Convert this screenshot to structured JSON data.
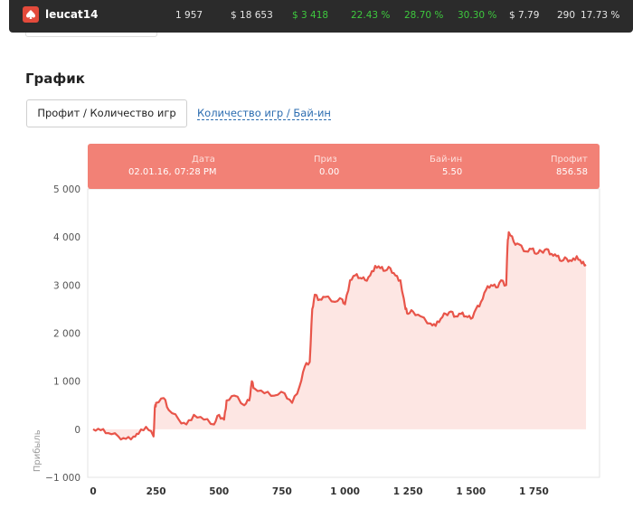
{
  "topbar": {
    "username": "leucat14",
    "stats": [
      {
        "value": "1 957",
        "color": "#e6e6e6"
      },
      {
        "value": "$ 18 653",
        "color": "#e6e6e6"
      },
      {
        "value": "$ 3 418",
        "color": "#3ec93e"
      },
      {
        "value": "22.43 %",
        "color": "#3ec93e"
      },
      {
        "value": "28.70 %",
        "color": "#3ec93e"
      },
      {
        "value": "30.30 %",
        "color": "#3ec93e"
      },
      {
        "value": "$ 7.79",
        "color": "#e6e6e6"
      },
      {
        "value": "290",
        "color": "#e6e6e6"
      },
      {
        "value": "17.73 %",
        "color": "#e6e6e6"
      }
    ]
  },
  "section": {
    "title": "График"
  },
  "tabs": {
    "active": "Профит / Количество игр",
    "inactive": "Количество игр / Бай-ин"
  },
  "tooltip": {
    "date_label": "Дата",
    "date_value": "02.01.16, 07:28 PM",
    "prize_label": "Приз",
    "prize_value": "0.00",
    "buyin_label": "Бай-ин",
    "buyin_value": "5.50",
    "profit_label": "Профит",
    "profit_value": "856.58"
  },
  "colors": {
    "line": "#e8554a",
    "fill": "#fde6e3",
    "tooltip": "#f28176",
    "topbar": "#2b2b2b"
  },
  "chart_data": {
    "type": "area",
    "ylabel": "Прибыль",
    "xlabel": "",
    "y_ticks": [
      "5 000",
      "4 000",
      "3 000",
      "2 000",
      "1 000",
      "0",
      "−1 000"
    ],
    "y_tick_values": [
      5000,
      4000,
      3000,
      2000,
      1000,
      0,
      -1000
    ],
    "x_ticks": [
      "0",
      "250",
      "500",
      "750",
      "1 000",
      "1 250",
      "1 500",
      "1 750"
    ],
    "x_tick_values": [
      0,
      250,
      500,
      750,
      1000,
      1250,
      1500,
      1750
    ],
    "xlim": [
      0,
      1957
    ],
    "ylim": [
      -1000,
      5000
    ],
    "grid": false,
    "series": [
      {
        "x": [
          0,
          30,
          60,
          100,
          130,
          160,
          180,
          210,
          240,
          245,
          250,
          280,
          300,
          340,
          370,
          400,
          440,
          480,
          500,
          520,
          530,
          560,
          600,
          620,
          630,
          640,
          680,
          720,
          760,
          790,
          820,
          840,
          860,
          870,
          880,
          900,
          920,
          960,
          990,
          1000,
          1020,
          1040,
          1060,
          1080,
          1100,
          1120,
          1140,
          1160,
          1180,
          1200,
          1220,
          1240,
          1250,
          1270,
          1300,
          1340,
          1360,
          1380,
          1400,
          1420,
          1440,
          1460,
          1480,
          1500,
          1520,
          1540,
          1560,
          1580,
          1600,
          1620,
          1640,
          1645,
          1650,
          1670,
          1690,
          1720,
          1740,
          1760,
          1780,
          1800,
          1820,
          1840,
          1860,
          1880,
          1900,
          1920,
          1940,
          1957
        ],
        "values": [
          0,
          -20,
          -80,
          -150,
          -200,
          -150,
          -100,
          50,
          -150,
          450,
          550,
          650,
          400,
          200,
          100,
          300,
          200,
          100,
          300,
          200,
          600,
          700,
          500,
          600,
          1000,
          850,
          750,
          700,
          750,
          550,
          900,
          1300,
          1400,
          2500,
          2800,
          2700,
          2750,
          2650,
          2700,
          2600,
          3100,
          3200,
          3150,
          3100,
          3200,
          3400,
          3350,
          3300,
          3350,
          3200,
          3100,
          2500,
          2400,
          2450,
          2350,
          2200,
          2150,
          2300,
          2400,
          2450,
          2350,
          2400,
          2350,
          2300,
          2500,
          2650,
          2900,
          3000,
          2950,
          3100,
          3000,
          3800,
          4100,
          3900,
          3850,
          3700,
          3750,
          3650,
          3700,
          3750,
          3650,
          3600,
          3500,
          3550,
          3500,
          3600,
          3450,
          3420
        ]
      }
    ]
  }
}
